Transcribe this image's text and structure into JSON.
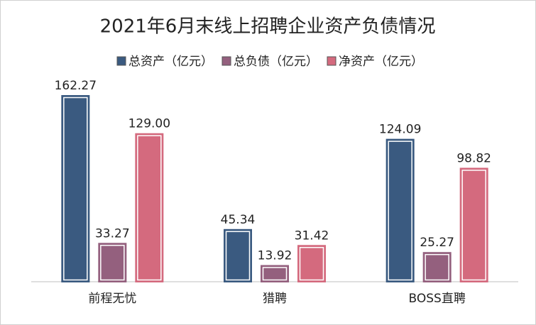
{
  "chart_data": {
    "type": "bar",
    "title": "2021年6月末线上招聘企业资产负债情况",
    "categories": [
      "前程无忧",
      "猎聘",
      "BOSS直聘"
    ],
    "series": [
      {
        "name": "总资产（亿元）",
        "color": "#3a5a80",
        "values": [
          162.27,
          45.34,
          124.09
        ],
        "value_labels": [
          "162.27",
          "45.34",
          "124.09"
        ]
      },
      {
        "name": "总负债（亿元）",
        "color": "#94607e",
        "values": [
          33.27,
          13.92,
          25.27
        ],
        "value_labels": [
          "33.27",
          "13.92",
          "25.27"
        ]
      },
      {
        "name": "净资产（亿元）",
        "color": "#d46a7e",
        "values": [
          129.0,
          31.42,
          98.82
        ],
        "value_labels": [
          "129.00",
          "31.42",
          "98.82"
        ]
      }
    ],
    "legend": "top"
  }
}
